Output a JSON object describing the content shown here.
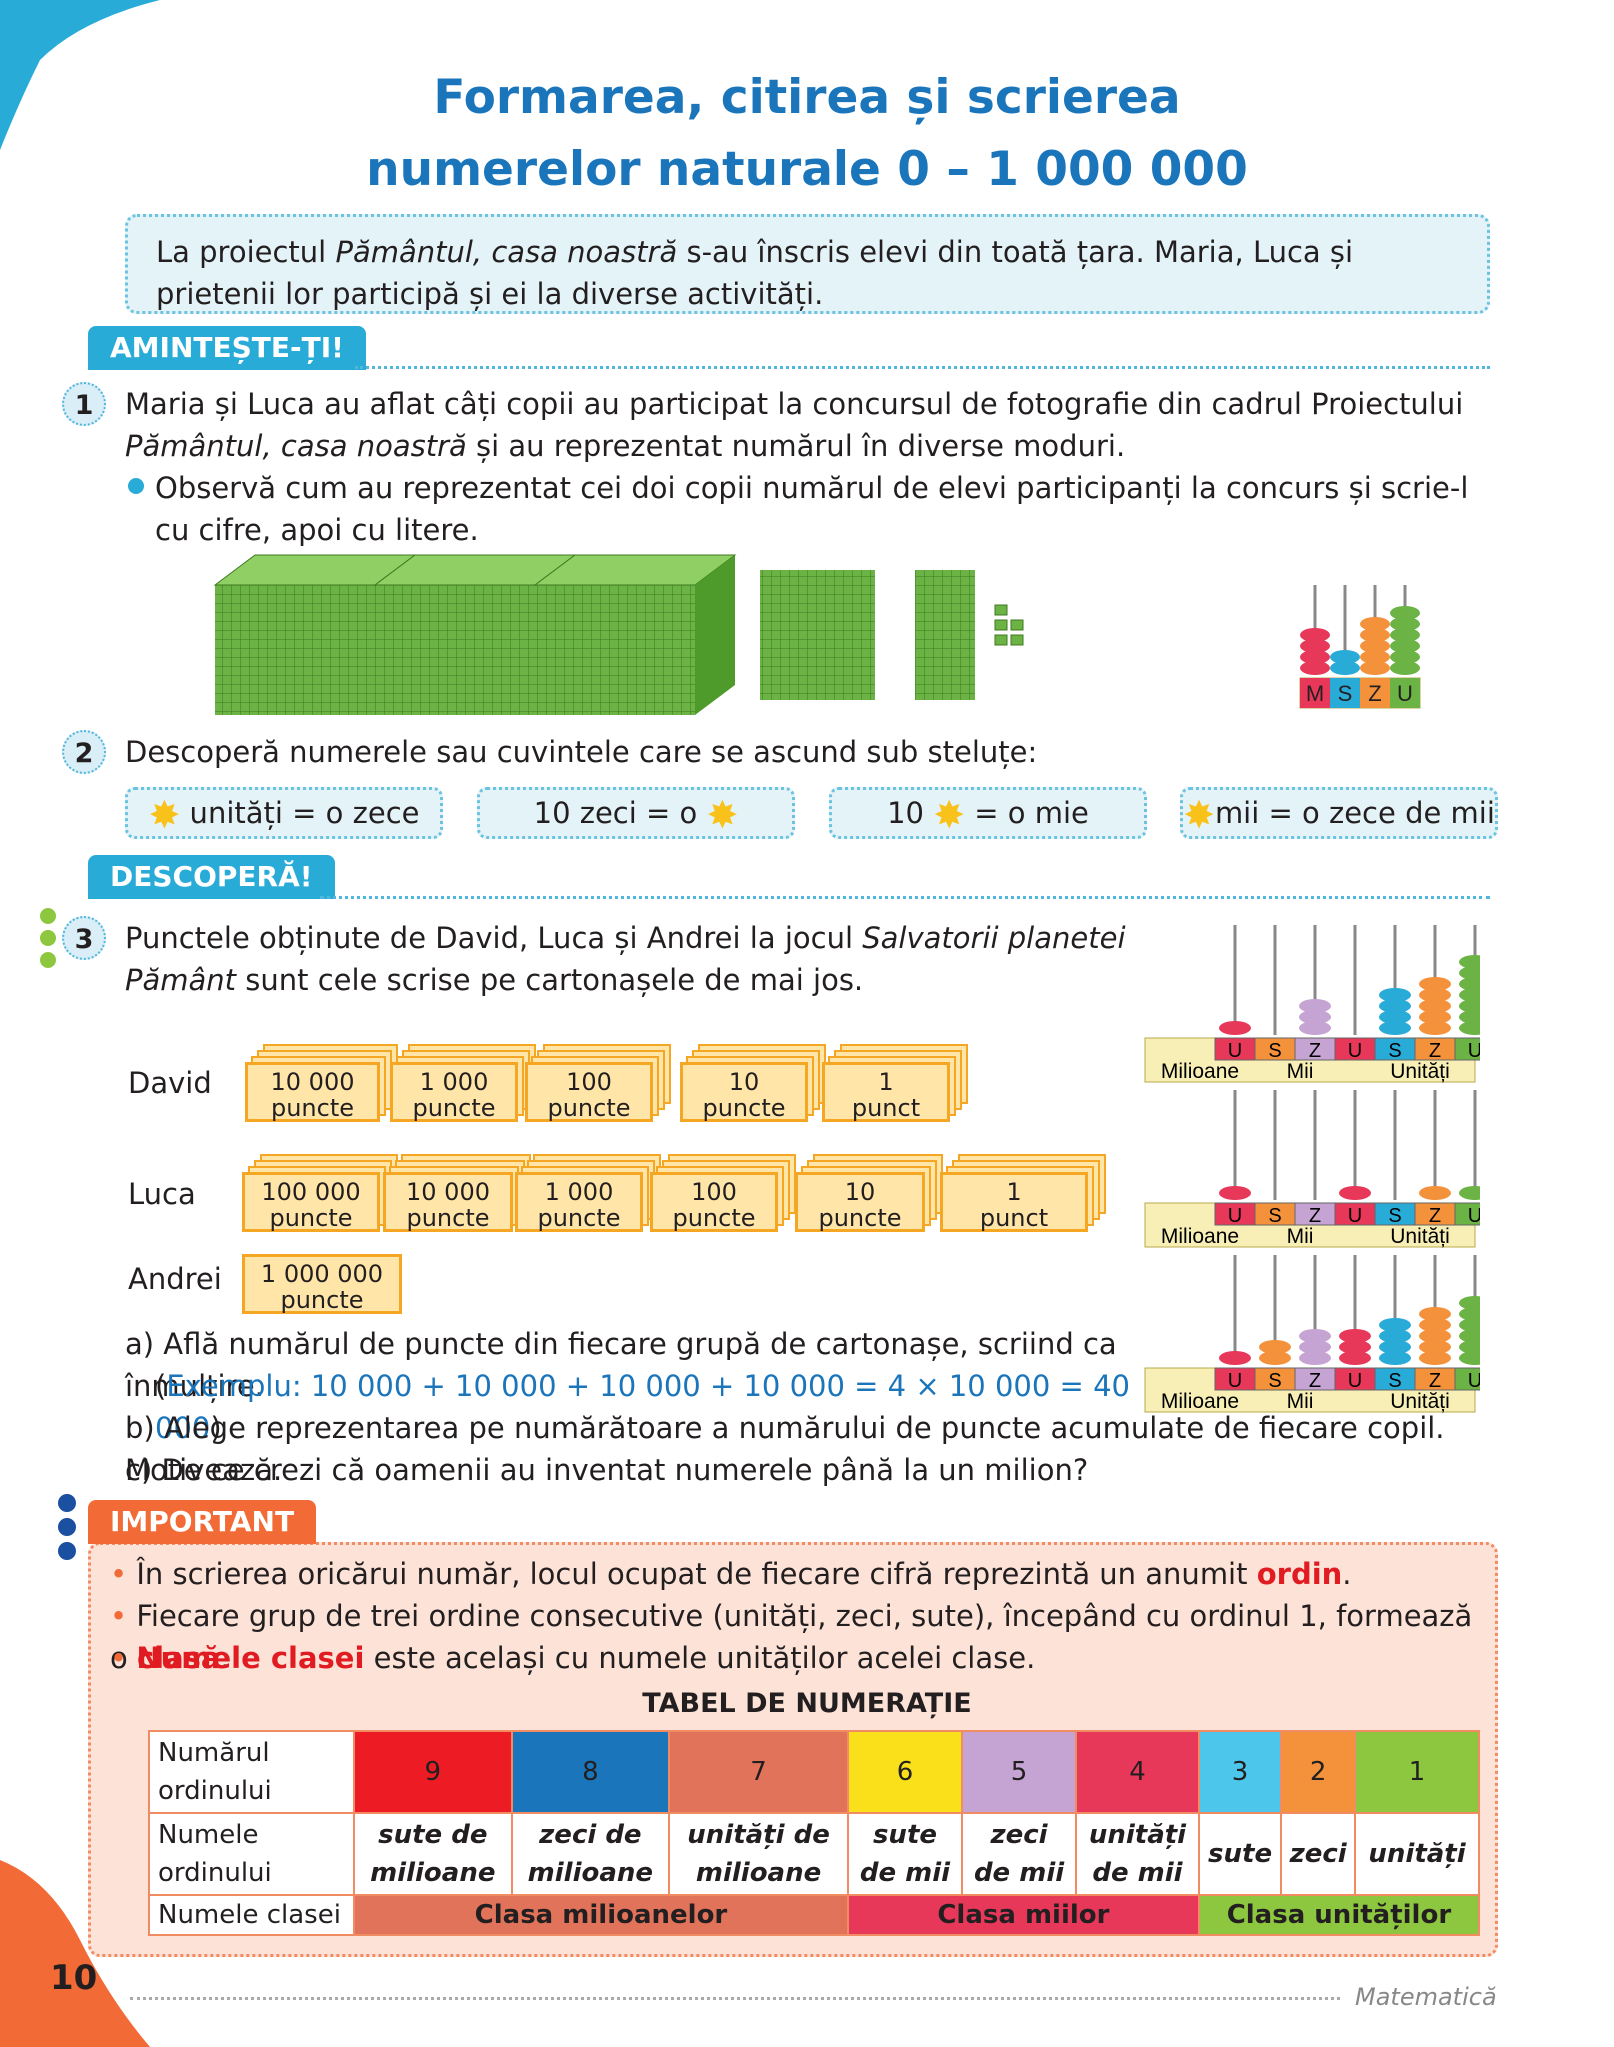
{
  "title": {
    "line1": "Formarea, citirea și scrierea",
    "line2": "numerelor naturale 0 – 1 000 000"
  },
  "intro": {
    "text_before": "La proiectul ",
    "italic": "Pământul, casa noastră",
    "text_after": " s-au înscris elevi din toată țara. Maria, Luca și prietenii lor participă și ei la diverse activități."
  },
  "section_remember": "AMINTEȘTE-ȚI!",
  "ex1": {
    "number": "1",
    "text1": "Maria și Luca au aflat câți copii au participat la concursul de fotografie din cadrul Proiectului",
    "text2_italic": "Pământul, casa noastră",
    "text2": " și au reprezentat numărul în diverse moduri.",
    "bullet": "Observă cum au reprezentat cei doi copii numărul de elevi participanți la concurs și scrie-l cu cifre, apoi cu litere.",
    "abacus_labels": [
      "M",
      "S",
      "Z",
      "U"
    ]
  },
  "ex2": {
    "number": "2",
    "text": "Descoperă numerele sau cuvintele care se ascund sub steluțe:",
    "boxes": [
      {
        "before": "",
        "after": " unități = o zece"
      },
      {
        "before": "10 zeci = o ",
        "after": ""
      },
      {
        "before": "10 ",
        "after": " = o mie"
      },
      {
        "before": "",
        "after": "mii = o zece de mii"
      }
    ]
  },
  "section_discover": "DESCOPERĂ!",
  "ex3": {
    "number": "3",
    "text1_before": "Punctele obținute de David, Luca și Andrei la jocul ",
    "text1_italic": "Salvatorii planetei",
    "text2_italic": "Pământ",
    "text2": " sunt cele scrise pe cartonașele de mai jos.",
    "kids": [
      {
        "name": "David",
        "cards": [
          [
            "10 000",
            "puncte"
          ],
          [
            "1 000",
            "puncte"
          ],
          [
            "100",
            "puncte"
          ],
          [
            "10",
            "puncte"
          ],
          [
            "1",
            "punct"
          ]
        ]
      },
      {
        "name": "Luca",
        "cards": [
          [
            "100 000",
            "puncte"
          ],
          [
            "10 000",
            "puncte"
          ],
          [
            "1 000",
            "puncte"
          ],
          [
            "100",
            "puncte"
          ],
          [
            "10",
            "puncte"
          ],
          [
            "1",
            "punct"
          ]
        ]
      },
      {
        "name": "Andrei",
        "cards": [
          [
            "1 000 000",
            "puncte"
          ]
        ]
      }
    ],
    "abacus_letters": [
      "U",
      "S",
      "Z",
      "U",
      "S",
      "Z",
      "U"
    ],
    "abacus_classes": [
      "Milioane",
      "Mii",
      "Unități"
    ],
    "qa": "a) Află numărul de puncte din fiecare grupă de cartonașe, scriind ca înmulțire.",
    "qa_example_open": "(",
    "qa_example": "Exemplu: 10 000 + 10 000 + 10 000 + 10 000 = 4 × 10 000 = 40 000",
    "qa_example_close": ")",
    "qb": "b) Alege reprezentarea pe numărătoare a numărului de puncte acumulate de fiecare copil. Motivează.",
    "qc": "c) De ce crezi că oamenii au inventat numerele până la un milion?"
  },
  "important": {
    "tag": "IMPORTANT",
    "b1_before": "În scrierea oricărui număr, locul ocupat de fiecare cifră reprezintă un anumit ",
    "b1_red": "ordin",
    "b1_after": ".",
    "b2_before": "Fiecare grup de trei ordine consecutive (unități, zeci, sute), începând cu ordinul 1, formează o ",
    "b2_red": "clasă",
    "b2_after": ".",
    "b3_red": "Numele clasei",
    "b3_after": " este același cu numele unităților acelei clase.",
    "table_title": "TABEL DE NUMERAȚIE",
    "row_labels": [
      "Numărul ordinului",
      "Numele ordinului",
      "Numele clasei"
    ],
    "orders": [
      {
        "n": "9",
        "name1": "sute de",
        "name2": "milioane",
        "color": "#ed1c24"
      },
      {
        "n": "8",
        "name1": "zeci de",
        "name2": "milioane",
        "color": "#1b75bb"
      },
      {
        "n": "7",
        "name1": "unități de",
        "name2": "milioane",
        "color": "#e0735a"
      },
      {
        "n": "6",
        "name1": "sute",
        "name2": "de mii",
        "color": "#f9e01b"
      },
      {
        "n": "5",
        "name1": "zeci",
        "name2": "de mii",
        "color": "#c5a3d3"
      },
      {
        "n": "4",
        "name1": "unități",
        "name2": "de mii",
        "color": "#e8385a"
      },
      {
        "n": "3",
        "name1": "sute",
        "name2": "",
        "color": "#4cc6ea"
      },
      {
        "n": "2",
        "name1": "zeci",
        "name2": "",
        "color": "#f4913b"
      },
      {
        "n": "1",
        "name1": "unități",
        "name2": "",
        "color": "#8dc63f"
      }
    ],
    "classes": [
      {
        "name": "Clasa milioanelor",
        "color": "#e0735a"
      },
      {
        "name": "Clasa miilor",
        "color": "#e8385a"
      },
      {
        "name": "Clasa unităților",
        "color": "#8dc63f"
      }
    ]
  },
  "footer": {
    "page": "10",
    "subject": "Matematică"
  }
}
